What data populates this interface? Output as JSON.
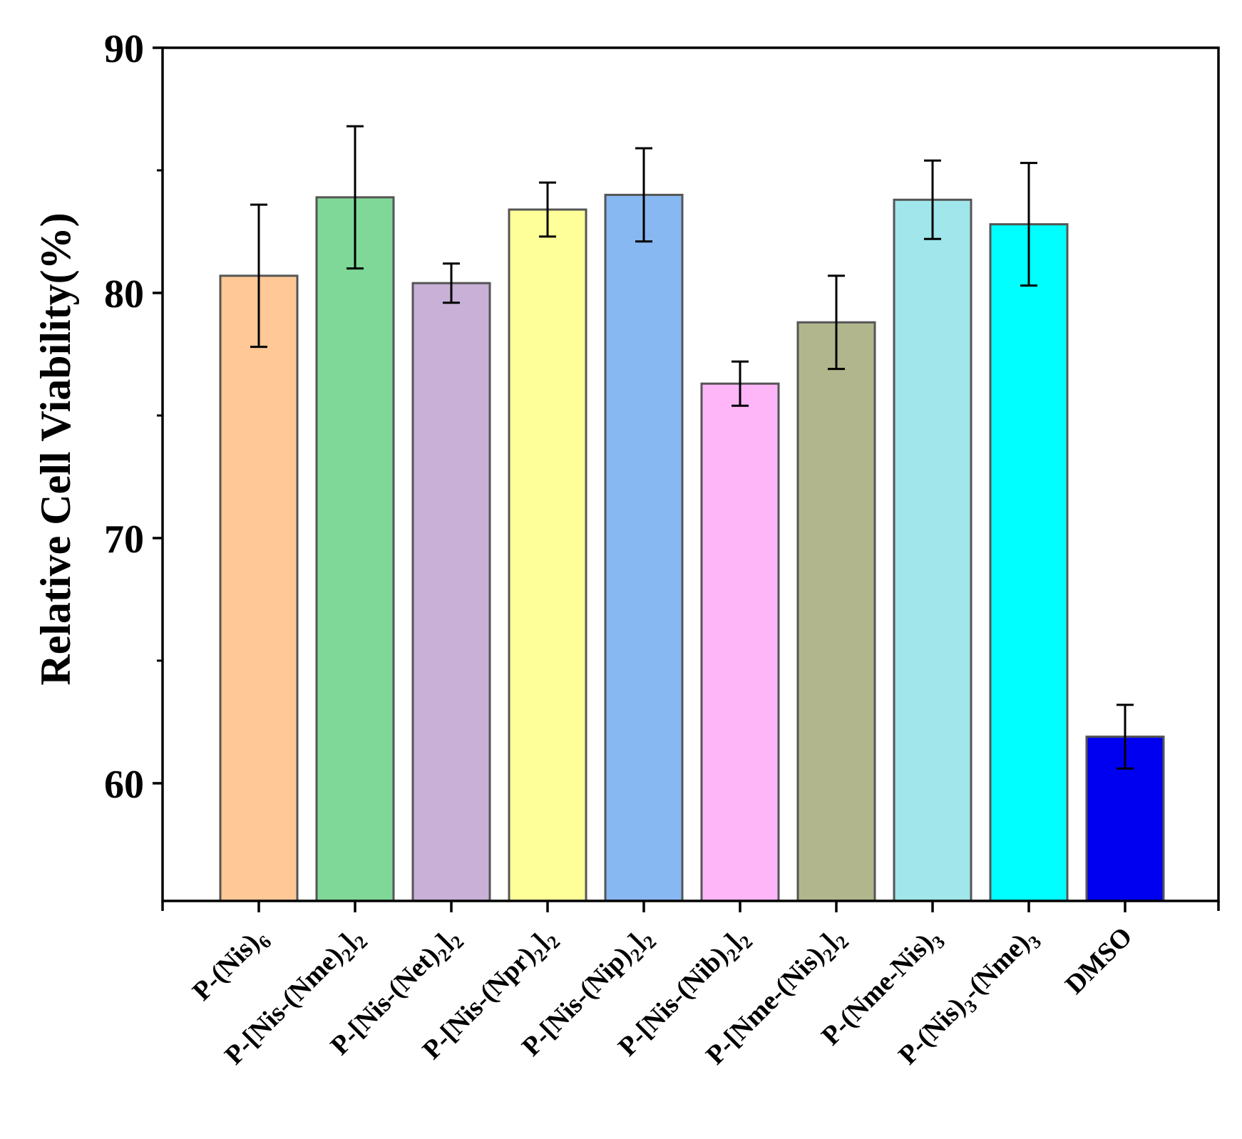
{
  "chart_data": {
    "type": "bar",
    "title": "",
    "xlabel": "",
    "ylabel": "Relative Cell Viability(%)",
    "ylim": [
      55.2,
      90
    ],
    "yticks": [
      60,
      70,
      80,
      90
    ],
    "grid": false,
    "legend": "none",
    "categories": [
      {
        "parts": [
          [
            "P-(Nis)",
            ""
          ],
          [
            "6",
            "sub"
          ]
        ]
      },
      {
        "parts": [
          [
            "P-[Nis-(Nme)",
            ""
          ],
          [
            "2",
            "sub"
          ],
          [
            "]",
            ""
          ],
          [
            "2",
            "sub"
          ]
        ]
      },
      {
        "parts": [
          [
            "P-[Nis-(Net)",
            ""
          ],
          [
            "2",
            "sub"
          ],
          [
            "]",
            ""
          ],
          [
            "2",
            "sub"
          ]
        ]
      },
      {
        "parts": [
          [
            "P-[Nis-(Npr)",
            ""
          ],
          [
            "2",
            "sub"
          ],
          [
            "]",
            ""
          ],
          [
            "2",
            "sub"
          ]
        ]
      },
      {
        "parts": [
          [
            "P-[Nis-(Nip)",
            ""
          ],
          [
            "2",
            "sub"
          ],
          [
            "]",
            ""
          ],
          [
            "2",
            "sub"
          ]
        ]
      },
      {
        "parts": [
          [
            "P-[Nis-(Nib)",
            ""
          ],
          [
            "2",
            "sub"
          ],
          [
            "]",
            ""
          ],
          [
            "2",
            "sub"
          ]
        ]
      },
      {
        "parts": [
          [
            "P-[Nme-(Nis)",
            ""
          ],
          [
            "2",
            "sub"
          ],
          [
            "]",
            ""
          ],
          [
            "2",
            "sub"
          ]
        ]
      },
      {
        "parts": [
          [
            "P-(Nme-Nis)",
            ""
          ],
          [
            "3",
            "sub"
          ]
        ]
      },
      {
        "parts": [
          [
            "P-(Nis)",
            ""
          ],
          [
            "3",
            "sub"
          ],
          [
            "-(Nme)",
            ""
          ],
          [
            "3",
            "sub"
          ]
        ]
      },
      {
        "parts": [
          [
            "DMSO",
            ""
          ]
        ]
      }
    ],
    "series": [
      {
        "name": "Relative Cell Viability",
        "values": [
          80.7,
          83.9,
          80.4,
          83.4,
          84.0,
          76.3,
          78.8,
          83.8,
          82.8,
          61.9
        ],
        "errors": [
          2.9,
          2.9,
          0.8,
          1.1,
          1.9,
          0.9,
          1.9,
          1.6,
          2.5,
          1.3
        ],
        "colors": [
          "#FFC896",
          "#7FD897",
          "#C8B0D6",
          "#FFFF99",
          "#88B8F2",
          "#FFB6F8",
          "#B1B68D",
          "#A0E6EA",
          "#00FFFF",
          "#0000F0"
        ]
      }
    ]
  }
}
